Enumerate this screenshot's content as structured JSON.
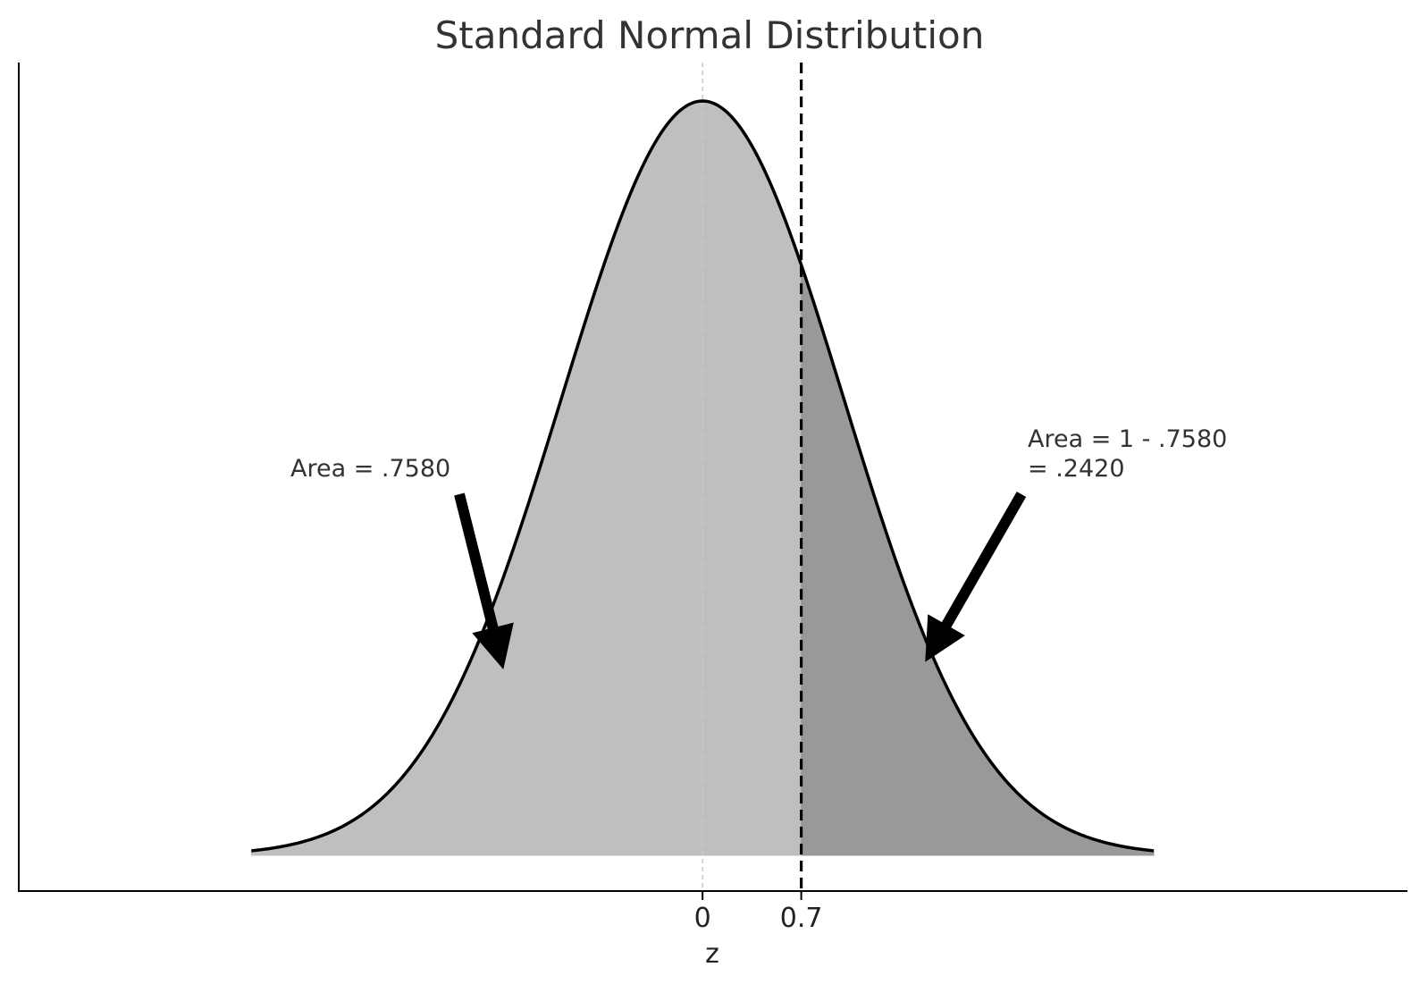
{
  "chart_data": {
    "type": "area",
    "title": "Standard Normal Distribution",
    "xlabel": "z",
    "ylabel": "",
    "xlim": [
      -4.85,
      5.0
    ],
    "plot_range": [
      -3.2,
      3.2
    ],
    "distribution": {
      "name": "normal",
      "mean": 0,
      "sd": 1
    },
    "cutoff": 0.7,
    "xticks": [
      {
        "value": 0,
        "label": "0"
      },
      {
        "value": 0.7,
        "label": "0.7"
      }
    ],
    "regions": [
      {
        "from": -3.2,
        "to": 0.7,
        "area": 0.758,
        "color": "#bfbfbf"
      },
      {
        "from": 0.7,
        "to": 3.2,
        "area": 0.242,
        "color": "#999999"
      }
    ],
    "annotations": [
      {
        "lines": [
          "Area = .7580"
        ]
      },
      {
        "lines": [
          "Area = 1 - .7580",
          "= .2420"
        ]
      }
    ],
    "grid": false
  }
}
